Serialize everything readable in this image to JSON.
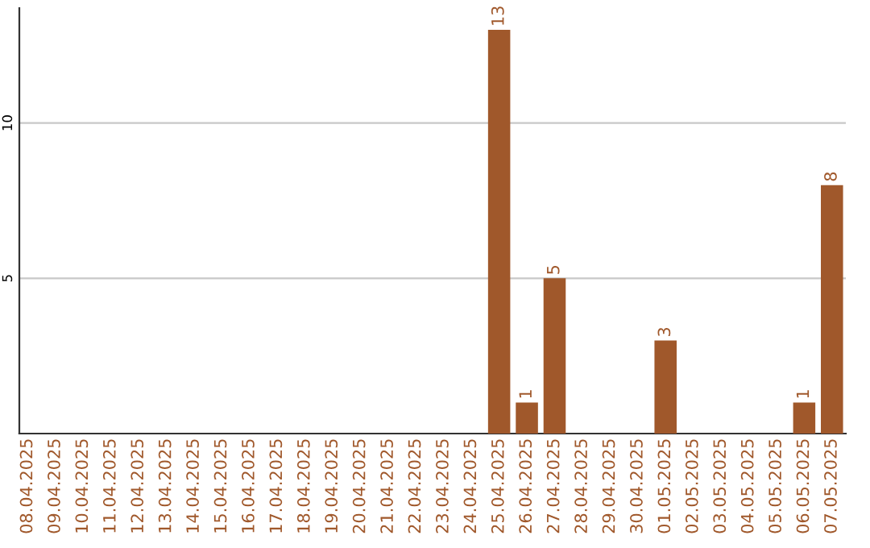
{
  "chart_data": {
    "type": "bar",
    "categories": [
      "08.04.2025",
      "09.04.2025",
      "10.04.2025",
      "11.04.2025",
      "12.04.2025",
      "13.04.2025",
      "14.04.2025",
      "15.04.2025",
      "16.04.2025",
      "17.04.2025",
      "18.04.2025",
      "19.04.2025",
      "20.04.2025",
      "21.04.2025",
      "22.04.2025",
      "23.04.2025",
      "24.04.2025",
      "25.04.2025",
      "26.04.2025",
      "27.04.2025",
      "28.04.2025",
      "29.04.2025",
      "30.04.2025",
      "01.05.2025",
      "02.05.2025",
      "03.05.2025",
      "04.05.2025",
      "05.05.2025",
      "06.05.2025",
      "07.05.2025"
    ],
    "values": [
      0,
      0,
      0,
      0,
      0,
      0,
      0,
      0,
      0,
      0,
      0,
      0,
      0,
      0,
      0,
      0,
      0,
      13,
      1,
      5,
      0,
      0,
      0,
      3,
      0,
      0,
      0,
      0,
      1,
      8
    ],
    "value_labels": [
      null,
      null,
      null,
      null,
      null,
      null,
      null,
      null,
      null,
      null,
      null,
      null,
      null,
      null,
      null,
      null,
      null,
      "13",
      "1",
      "5",
      null,
      null,
      null,
      "3",
      null,
      null,
      null,
      null,
      "1",
      "8"
    ],
    "color": "#a0582b",
    "ylim": [
      0,
      13.7
    ],
    "yticks": [
      5,
      10
    ],
    "grid": "y"
  }
}
